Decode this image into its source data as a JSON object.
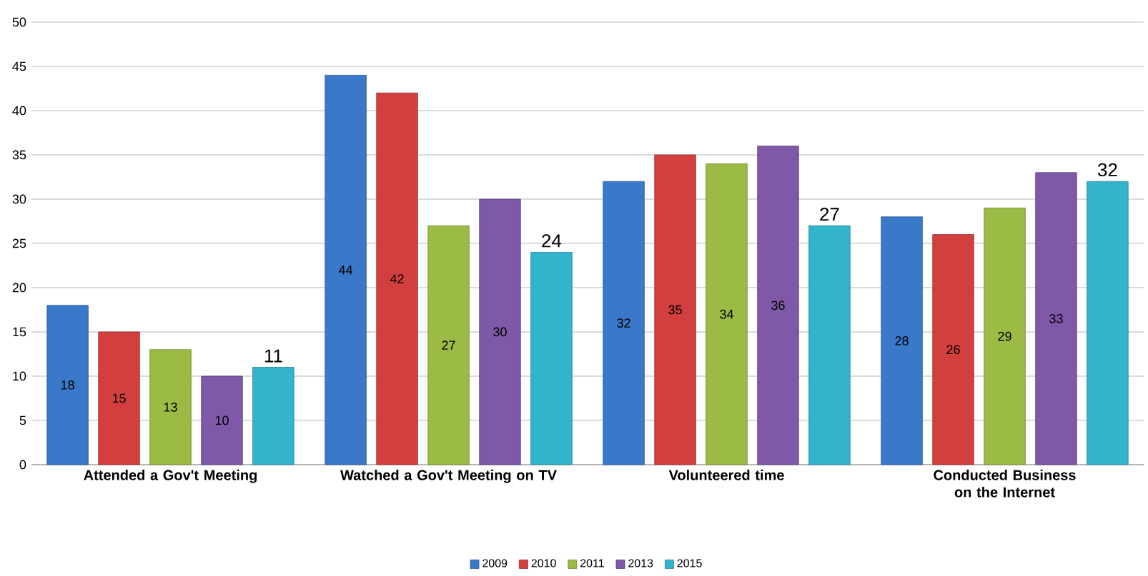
{
  "chart_data": {
    "type": "bar",
    "categories": [
      "Attended a Gov't Meeting",
      "Watched a Gov't Meeting on TV",
      "Volunteered time",
      "Conducted Business on the Internet"
    ],
    "series": [
      {
        "name": "2009",
        "color": "#3a78c9",
        "values": [
          18,
          44,
          32,
          28
        ]
      },
      {
        "name": "2010",
        "color": "#d33f3f",
        "values": [
          15,
          42,
          35,
          26
        ]
      },
      {
        "name": "2011",
        "color": "#9bbb44",
        "values": [
          13,
          27,
          34,
          29
        ]
      },
      {
        "name": "2013",
        "color": "#7f59a8",
        "values": [
          10,
          30,
          36,
          33
        ]
      },
      {
        "name": "2015",
        "color": "#32b4cc",
        "values": [
          11,
          24,
          27,
          32
        ]
      }
    ],
    "ylim": [
      0,
      50
    ],
    "yticks": [
      0,
      5,
      10,
      15,
      20,
      25,
      30,
      35,
      40,
      45,
      50
    ],
    "grid": "y",
    "legend": "bottom",
    "data_labels": true
  }
}
